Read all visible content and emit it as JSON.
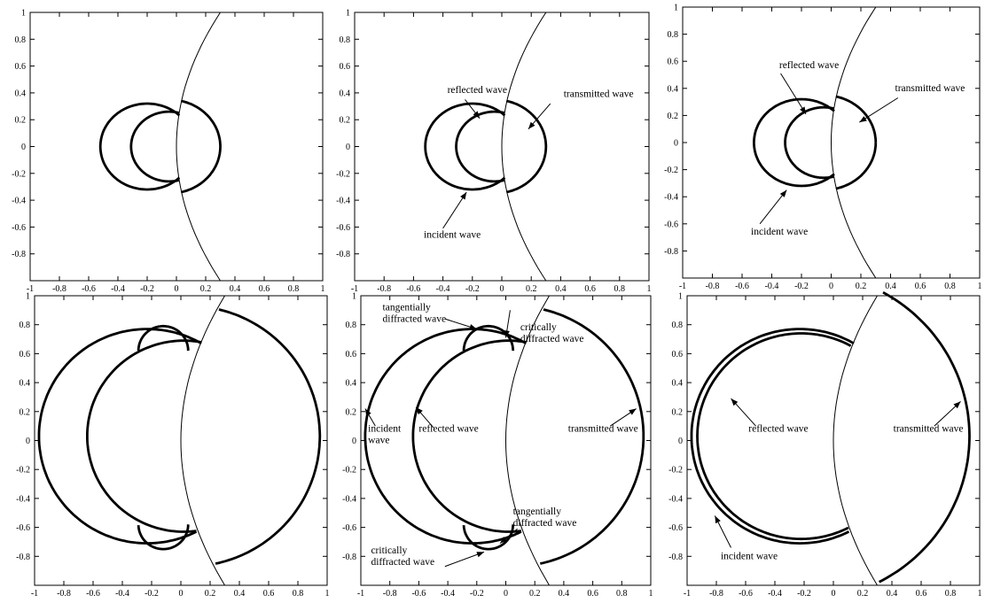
{
  "figure": {
    "description_free": true,
    "x_ticks": [
      "-1",
      "-0.8",
      "-0.6",
      "-0.4",
      "-0.2",
      "0",
      "0.2",
      "0.4",
      "0.6",
      "0.8",
      "1"
    ],
    "y_ticks": [
      "1",
      "0.8",
      "0.6",
      "0.4",
      "0.2",
      "0",
      "-0.2",
      "-0.4",
      "-0.6",
      "-0.8"
    ],
    "xlim": [
      -1,
      1
    ],
    "ylim": [
      -1,
      1
    ],
    "panels": [
      {
        "id": "p1",
        "waves": [
          {
            "type": "incident",
            "center": [
              -0.2,
              0
            ],
            "radius": 0.32,
            "side": "left"
          },
          {
            "type": "reflected",
            "center": [
              -0.05,
              0
            ],
            "radius": 0.26,
            "side": "left"
          },
          {
            "type": "transmitted",
            "center": [
              -0.05,
              0
            ],
            "radius": 0.35,
            "side": "right"
          }
        ],
        "annotations": []
      },
      {
        "id": "p2",
        "waves": [
          {
            "type": "incident",
            "center": [
              -0.2,
              0
            ],
            "radius": 0.32,
            "side": "left"
          },
          {
            "type": "reflected",
            "center": [
              -0.05,
              0
            ],
            "radius": 0.26,
            "side": "left"
          },
          {
            "type": "transmitted",
            "center": [
              -0.05,
              0
            ],
            "radius": 0.35,
            "side": "right"
          }
        ],
        "annotations": [
          {
            "lines": [
              "reflected wave"
            ],
            "text_at": [
              -0.37,
              0.4
            ],
            "tail": [
              -0.25,
              0.35
            ],
            "head": [
              -0.15,
              0.21
            ]
          },
          {
            "lines": [
              "transmitted wave"
            ],
            "text_at": [
              0.42,
              0.37
            ],
            "tail": [
              0.33,
              0.32
            ],
            "head": [
              0.18,
              0.13
            ]
          },
          {
            "lines": [
              "incident wave"
            ],
            "text_at": [
              -0.53,
              -0.68
            ],
            "tail": [
              -0.4,
              -0.61
            ],
            "head": [
              -0.24,
              -0.34
            ]
          }
        ]
      },
      {
        "id": "p3",
        "waves": [
          {
            "type": "incident",
            "center": [
              -0.2,
              0
            ],
            "radius": 0.32,
            "side": "left"
          },
          {
            "type": "reflected",
            "center": [
              -0.05,
              0
            ],
            "radius": 0.26,
            "side": "left"
          },
          {
            "type": "transmitted",
            "center": [
              -0.05,
              0
            ],
            "radius": 0.35,
            "side": "right"
          }
        ],
        "annotations": [
          {
            "lines": [
              "reflected wave"
            ],
            "text_at": [
              -0.35,
              0.55
            ],
            "tail": [
              -0.34,
              0.51
            ],
            "head": [
              -0.17,
              0.21
            ]
          },
          {
            "lines": [
              "transmitted wave"
            ],
            "text_at": [
              0.43,
              0.38
            ],
            "tail": [
              0.45,
              0.33
            ],
            "head": [
              0.19,
              0.15
            ]
          },
          {
            "lines": [
              "incident wave"
            ],
            "text_at": [
              -0.54,
              -0.68
            ],
            "tail": [
              -0.48,
              -0.6
            ],
            "head": [
              -0.3,
              -0.35
            ]
          }
        ]
      },
      {
        "id": "p4",
        "waves": [
          {
            "type": "incident",
            "center": [
              -0.23,
              0.03
            ],
            "radius": 0.74,
            "side": "left"
          },
          {
            "type": "reflected",
            "center": [
              0.02,
              0.03
            ],
            "radius": 0.66,
            "side": "left"
          },
          {
            "type": "transmitted",
            "center": [
              0.05,
              0.03
            ],
            "radius": 0.9,
            "side": "right"
          },
          {
            "type": "tangential-top",
            "center": [
              -0.12,
              0.62
            ],
            "radius": 0.17,
            "side": "top"
          },
          {
            "type": "tangential-bottom",
            "center": [
              -0.12,
              -0.58
            ],
            "radius": 0.17,
            "side": "bottom"
          }
        ],
        "annotations": []
      },
      {
        "id": "p5",
        "waves": [
          {
            "type": "incident",
            "center": [
              -0.23,
              0.03
            ],
            "radius": 0.74,
            "side": "left"
          },
          {
            "type": "reflected",
            "center": [
              0.02,
              0.03
            ],
            "radius": 0.66,
            "side": "left"
          },
          {
            "type": "transmitted",
            "center": [
              0.05,
              0.03
            ],
            "radius": 0.9,
            "side": "right"
          },
          {
            "type": "tangential-top",
            "center": [
              -0.12,
              0.62
            ],
            "radius": 0.17,
            "side": "top"
          },
          {
            "type": "tangential-bottom",
            "center": [
              -0.12,
              -0.58
            ],
            "radius": 0.17,
            "side": "bottom"
          }
        ],
        "annotations": [
          {
            "lines": [
              "tangentially",
              "diffracted wave"
            ],
            "text_at": [
              -0.85,
              0.9
            ],
            "tail": [
              -0.42,
              0.84
            ],
            "head": [
              -0.2,
              0.77
            ]
          },
          {
            "lines": [
              "critically",
              "diffracted wave"
            ],
            "text_at": [
              0.1,
              0.76
            ],
            "tail": [
              0.03,
              0.9
            ],
            "head": [
              0.0,
              0.71
            ]
          },
          {
            "lines": [
              "incident",
              "wave"
            ],
            "text_at": [
              -0.95,
              0.06
            ],
            "tail": [
              -0.9,
              0.1
            ],
            "head": [
              -0.97,
              0.22
            ]
          },
          {
            "lines": [
              "reflected wave"
            ],
            "text_at": [
              -0.6,
              0.06
            ],
            "tail": [
              -0.5,
              0.09
            ],
            "head": [
              -0.62,
              0.23
            ]
          },
          {
            "lines": [
              "transmitted wave"
            ],
            "text_at": [
              0.43,
              0.06
            ],
            "tail": [
              0.72,
              0.1
            ],
            "head": [
              0.9,
              0.22
            ]
          },
          {
            "lines": [
              "tangentially",
              "diffracted wave"
            ],
            "text_at": [
              0.05,
              -0.51
            ],
            "tail": [
              0.08,
              -0.61
            ],
            "head": [
              -0.04,
              -0.71
            ]
          },
          {
            "lines": [
              "critically",
              "diffracted wave"
            ],
            "text_at": [
              -0.93,
              -0.78
            ],
            "tail": [
              -0.42,
              -0.87
            ],
            "head": [
              -0.15,
              -0.77
            ]
          }
        ]
      },
      {
        "id": "p6",
        "waves": [
          {
            "type": "incident",
            "center": [
              -0.23,
              0.03
            ],
            "radius": 0.74,
            "side": "left"
          },
          {
            "type": "reflected",
            "center": [
              -0.22,
              0.03
            ],
            "radius": 0.71,
            "side": "left"
          },
          {
            "type": "transmitted",
            "center": [
              -0.2,
              0.03
            ],
            "radius": 1.13,
            "side": "right"
          }
        ],
        "annotations": [
          {
            "lines": [
              "reflected wave"
            ],
            "text_at": [
              -0.58,
              0.06
            ],
            "tail": [
              -0.53,
              0.1
            ],
            "head": [
              -0.7,
              0.29
            ]
          },
          {
            "lines": [
              "transmitted wave"
            ],
            "text_at": [
              0.41,
              0.06
            ],
            "tail": [
              0.69,
              0.1
            ],
            "head": [
              0.87,
              0.27
            ]
          },
          {
            "lines": [
              "incident wave"
            ],
            "text_at": [
              -0.77,
              -0.82
            ],
            "tail": [
              -0.7,
              -0.74
            ],
            "head": [
              -0.81,
              -0.52
            ]
          }
        ]
      }
    ]
  }
}
